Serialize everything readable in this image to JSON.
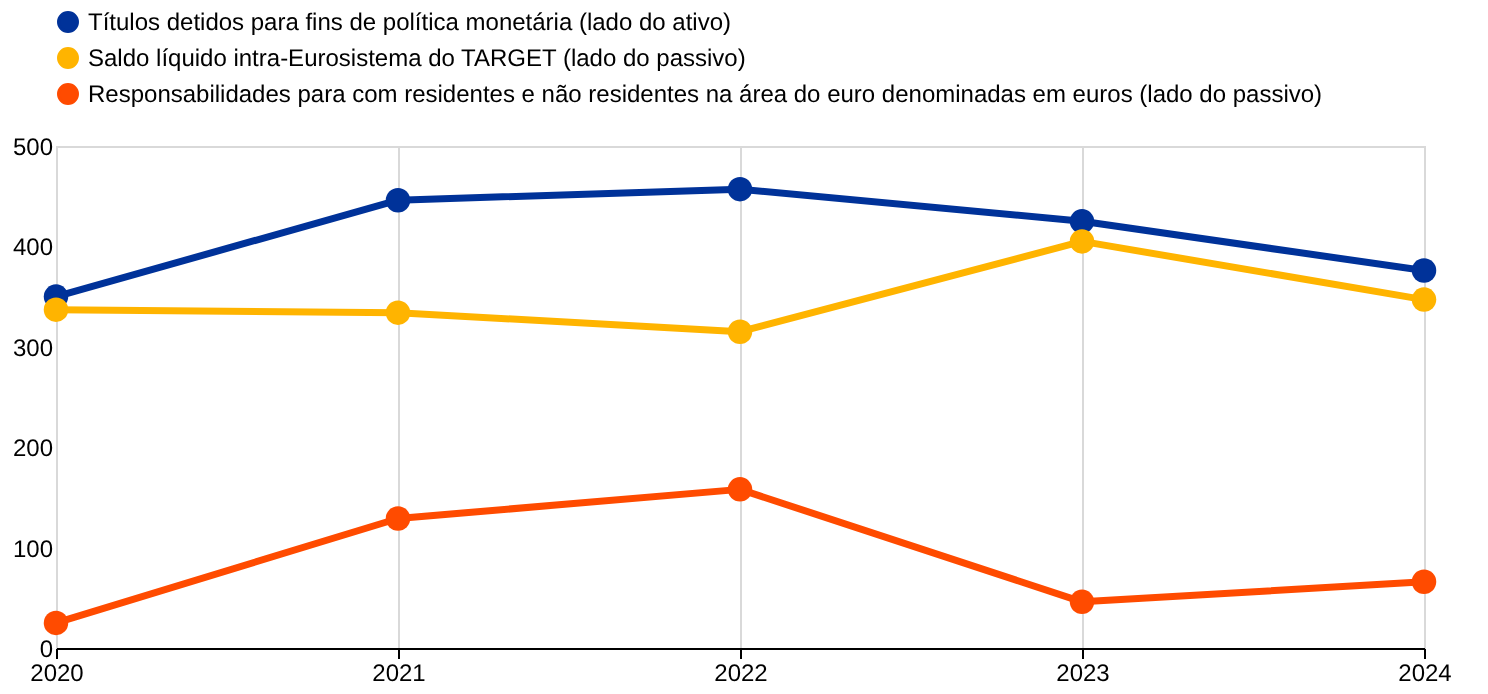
{
  "chart_data": {
    "type": "line",
    "x": [
      2020,
      2021,
      2022,
      2023,
      2024
    ],
    "xlim": [
      2020,
      2024
    ],
    "xticks": [
      2020,
      2021,
      2022,
      2023,
      2024
    ],
    "ylim": [
      0,
      500
    ],
    "yticks": [
      0,
      100,
      200,
      300,
      400,
      500
    ],
    "grid": "x",
    "legend": "top left",
    "marker": "circle",
    "line_style": "solid",
    "series": [
      {
        "name": "Títulos detidos para fins de política monetária (lado do ativo)",
        "color": "#003299",
        "values": [
          350,
          446,
          457,
          425,
          376
        ]
      },
      {
        "name": "Saldo líquido intra-Eurosistema do TARGET (lado do passivo)",
        "color": "#ffb400",
        "values": [
          337,
          334,
          315,
          405,
          347
        ]
      },
      {
        "name": "Responsabilidades para com residentes e não residentes na área do euro denominadas em euros (lado do passivo)",
        "color": "#ff4b00",
        "values": [
          25,
          129,
          158,
          46,
          66
        ]
      }
    ]
  }
}
